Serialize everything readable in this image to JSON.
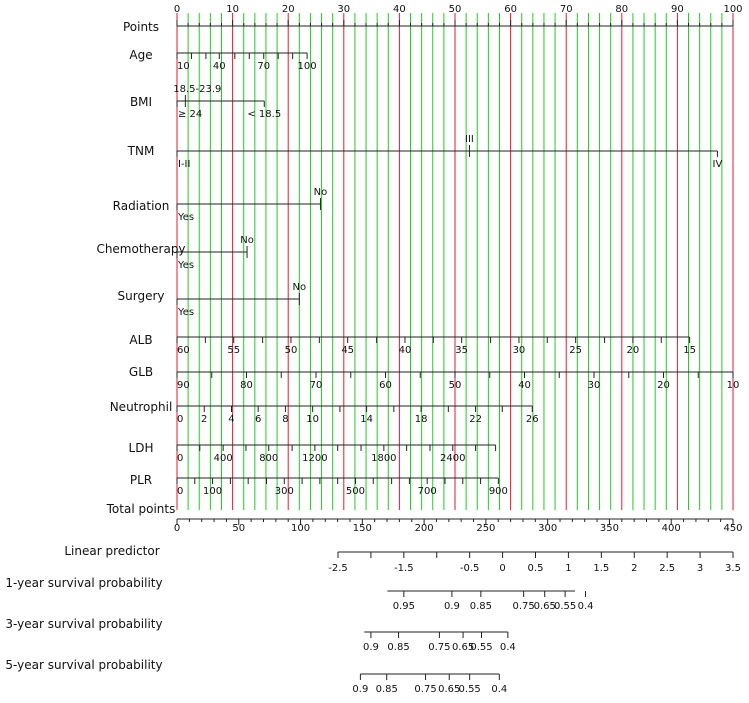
{
  "chart_data": {
    "type": "nomogram",
    "points_scale": {
      "name": "Points",
      "min": 0,
      "max": 100,
      "major_step": 10,
      "ticks": [
        "0",
        "10",
        "20",
        "30",
        "40",
        "50",
        "60",
        "70",
        "80",
        "90",
        "100"
      ]
    },
    "rows": [
      {
        "id": "age",
        "name": "Age",
        "ticks": [
          {
            "label": "10",
            "points": 0
          },
          {
            "label": "40",
            "points": 7.6
          },
          {
            "label": "70",
            "points": 15.6
          },
          {
            "label": "100",
            "points": 23.4
          }
        ],
        "minor_points": [
          0,
          2.6,
          5.2,
          7.6,
          10.4,
          13,
          15.6,
          18.2,
          20.8,
          23.4
        ]
      },
      {
        "id": "bmi",
        "name": "BMI",
        "ticks": [
          {
            "label": "18.5-23.9",
            "points": 1.5,
            "pos": "above"
          },
          {
            "label": "≥ 24",
            "points": 0,
            "pos": "below"
          },
          {
            "label": "< 18.5",
            "points": 15.7,
            "pos": "below"
          }
        ],
        "minor_points": [
          0,
          1.5,
          15.7
        ]
      },
      {
        "id": "tnm",
        "name": "TNM",
        "ticks": [
          {
            "label": "III",
            "points": 52.6,
            "pos": "above"
          },
          {
            "label": "I-II",
            "points": 0,
            "pos": "below"
          },
          {
            "label": "IV",
            "points": 97.2,
            "pos": "below"
          }
        ],
        "minor_points": [
          0,
          52.6,
          97.2
        ]
      },
      {
        "id": "radiation",
        "name": "Radiation",
        "ticks": [
          {
            "label": "No",
            "points": 25.8,
            "pos": "above"
          },
          {
            "label": "Yes",
            "points": 0,
            "pos": "below"
          }
        ],
        "minor_points": [
          0,
          25.8
        ]
      },
      {
        "id": "chemotherapy",
        "name": "Chemotherapy",
        "ticks": [
          {
            "label": "No",
            "points": 12.6,
            "pos": "above"
          },
          {
            "label": "Yes",
            "points": 0,
            "pos": "below"
          }
        ],
        "minor_points": [
          0,
          12.6
        ]
      },
      {
        "id": "surgery",
        "name": "Surgery",
        "ticks": [
          {
            "label": "No",
            "points": 22,
            "pos": "above"
          },
          {
            "label": "Yes",
            "points": 0,
            "pos": "below"
          }
        ],
        "minor_points": [
          0,
          22
        ]
      },
      {
        "id": "alb",
        "name": "ALB",
        "ticks": [
          {
            "label": "60",
            "points": 0
          },
          {
            "label": "55",
            "points": 10.2
          },
          {
            "label": "50",
            "points": 20.5
          },
          {
            "label": "45",
            "points": 30.7
          },
          {
            "label": "40",
            "points": 41
          },
          {
            "label": "35",
            "points": 51.2
          },
          {
            "label": "30",
            "points": 61.5
          },
          {
            "label": "25",
            "points": 71.7
          },
          {
            "label": "20",
            "points": 82
          },
          {
            "label": "15",
            "points": 92.2
          }
        ],
        "minor_points": [
          0,
          5.1,
          10.2,
          15.4,
          20.5,
          25.6,
          30.7,
          35.9,
          41,
          46.1,
          51.2,
          56.4,
          61.5,
          66.6,
          71.7,
          76.9,
          82,
          87.1,
          92.2
        ]
      },
      {
        "id": "glb",
        "name": "GLB",
        "ticks": [
          {
            "label": "90",
            "points": 0
          },
          {
            "label": "80",
            "points": 12.5
          },
          {
            "label": "70",
            "points": 25
          },
          {
            "label": "60",
            "points": 37.5
          },
          {
            "label": "50",
            "points": 50
          },
          {
            "label": "40",
            "points": 62.5
          },
          {
            "label": "30",
            "points": 75
          },
          {
            "label": "20",
            "points": 87.5
          },
          {
            "label": "10",
            "points": 100
          }
        ],
        "minor_points": [
          0,
          6.25,
          12.5,
          18.75,
          25,
          31.25,
          37.5,
          43.75,
          50,
          56.25,
          62.5,
          68.75,
          75,
          81.25,
          87.5,
          93.75,
          100
        ]
      },
      {
        "id": "neutrophil",
        "name": "Neutrophil",
        "ticks": [
          {
            "label": "0",
            "points": 0
          },
          {
            "label": "2",
            "points": 4.9
          },
          {
            "label": "4",
            "points": 9.8
          },
          {
            "label": "6",
            "points": 14.6
          },
          {
            "label": "8",
            "points": 19.5
          },
          {
            "label": "10",
            "points": 24.4
          },
          {
            "label": "14",
            "points": 34.1
          },
          {
            "label": "18",
            "points": 43.9
          },
          {
            "label": "22",
            "points": 53.7
          },
          {
            "label": "26",
            "points": 63.9
          }
        ],
        "minor_points": [
          0,
          4.9,
          9.8,
          14.6,
          19.5,
          24.4,
          29.3,
          34.1,
          39,
          43.9,
          48.8,
          53.7,
          58.5,
          63.9
        ]
      },
      {
        "id": "ldh",
        "name": "LDH",
        "ticks": [
          {
            "label": "0",
            "points": 0
          },
          {
            "label": "400",
            "points": 8.3
          },
          {
            "label": "800",
            "points": 16.5
          },
          {
            "label": "1200",
            "points": 24.8
          },
          {
            "label": "1800",
            "points": 37.2
          },
          {
            "label": "2400",
            "points": 49.6
          }
        ],
        "minor_points": [
          0,
          4.1,
          8.3,
          12.4,
          16.5,
          20.7,
          24.8,
          28.9,
          33.1,
          37.2,
          41.3,
          45.5,
          49.6,
          53.7,
          57.3
        ]
      },
      {
        "id": "plr",
        "name": "PLR",
        "ticks": [
          {
            "label": "0",
            "points": 0
          },
          {
            "label": "100",
            "points": 6.4
          },
          {
            "label": "300",
            "points": 19.3
          },
          {
            "label": "500",
            "points": 32.1
          },
          {
            "label": "700",
            "points": 45
          },
          {
            "label": "900",
            "points": 57.8
          }
        ],
        "minor_points": [
          0,
          3.2,
          6.4,
          9.6,
          12.8,
          16.1,
          19.3,
          22.5,
          25.7,
          28.9,
          32.1,
          35.3,
          38.6,
          41.8,
          45,
          48.2,
          51.4,
          54.6,
          57.8
        ]
      }
    ],
    "total_points": {
      "name": "Total points",
      "min": 0,
      "max": 450,
      "major_step": 50,
      "ticks": [
        "0",
        "50",
        "100",
        "150",
        "200",
        "250",
        "300",
        "350",
        "400",
        "450"
      ]
    },
    "linear_predictor": {
      "name": "Linear predictor",
      "ticks": [
        {
          "label": "-2.5",
          "value": -2.5
        },
        {
          "label": "-1.5",
          "value": -1.5
        },
        {
          "label": "-0.5",
          "value": -0.5
        },
        {
          "label": "0",
          "value": 0
        },
        {
          "label": "0.5",
          "value": 0.5
        },
        {
          "label": "1",
          "value": 1
        },
        {
          "label": "1.5",
          "value": 1.5
        },
        {
          "label": "2",
          "value": 2
        },
        {
          "label": "2.5",
          "value": 2.5
        },
        {
          "label": "3",
          "value": 3
        },
        {
          "label": "3.5",
          "value": 3.5
        }
      ],
      "minor_values": [
        -2.5,
        -2,
        -1.5,
        -1,
        -0.5,
        0,
        0.5,
        1,
        1.5,
        2,
        2.5,
        3,
        3.5
      ]
    },
    "survival": [
      {
        "name": "1-year survival probability",
        "ticks": [
          {
            "label": "0.95",
            "lp": -1.5
          },
          {
            "label": "0.9",
            "lp": -0.77
          },
          {
            "label": "0.85",
            "lp": -0.33
          },
          {
            "label": "0.75",
            "lp": 0.32
          },
          {
            "label": "0.65",
            "lp": 0.64
          },
          {
            "label": "0.55",
            "lp": 0.95
          },
          {
            "label": "0.4",
            "lp": 1.26
          }
        ],
        "extent": [
          -1.75,
          1.1
        ]
      },
      {
        "name": "3-year survival probability",
        "ticks": [
          {
            "label": "0.9",
            "lp": -2.0
          },
          {
            "label": "0.85",
            "lp": -1.58
          },
          {
            "label": "0.75",
            "lp": -0.96
          },
          {
            "label": "0.65",
            "lp": -0.6
          },
          {
            "label": "0.55",
            "lp": -0.32
          },
          {
            "label": "0.4",
            "lp": 0.08
          }
        ],
        "extent": [
          -2.1,
          0.08
        ]
      },
      {
        "name": "5-year survival probability",
        "ticks": [
          {
            "label": "0.9",
            "lp": -2.16
          },
          {
            "label": "0.85",
            "lp": -1.76
          },
          {
            "label": "0.75",
            "lp": -1.17
          },
          {
            "label": "0.65",
            "lp": -0.81
          },
          {
            "label": "0.55",
            "lp": -0.5
          },
          {
            "label": "0.4",
            "lp": -0.05
          }
        ],
        "extent": [
          -2.16,
          -0.05
        ]
      }
    ],
    "colors": {
      "red_line": "#e8192c",
      "green_line": "#22cc22",
      "axis": "#222222"
    }
  }
}
